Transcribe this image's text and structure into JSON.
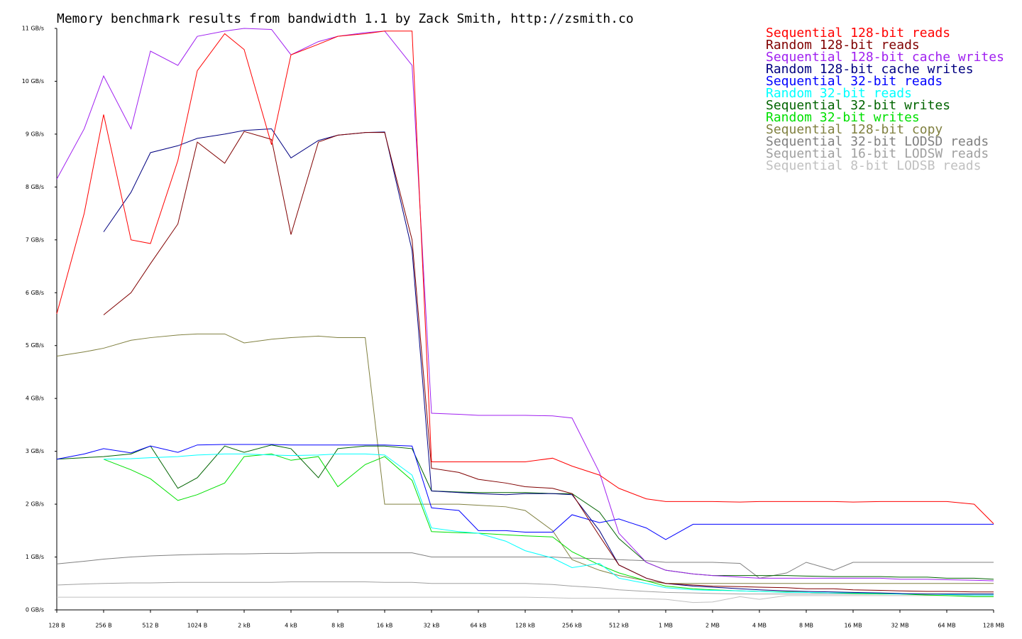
{
  "chart_data": {
    "type": "line",
    "title": "Memory benchmark results from bandwidth 1.1 by Zack Smith, http://zsmith.co",
    "xscale": "log",
    "legend": "top-right",
    "grid": false,
    "x": [
      128,
      192,
      256,
      384,
      512,
      768,
      1024,
      1536,
      2048,
      3072,
      4096,
      6144,
      8192,
      12288,
      16384,
      24576,
      32768,
      49152,
      65536,
      98304,
      131072,
      196608,
      262144,
      393216,
      524288,
      786432,
      1048576,
      1572864,
      2097152,
      3145728,
      4194304,
      6291456,
      8388608,
      12582912,
      16777216,
      25165824,
      33554432,
      50331648,
      67108864,
      100663296,
      134217728
    ],
    "xlim": [
      128,
      134217728
    ],
    "xticks": [
      {
        "value": 128,
        "label": "128 B"
      },
      {
        "value": 256,
        "label": "256 B"
      },
      {
        "value": 512,
        "label": "512 B"
      },
      {
        "value": 1024,
        "label": "1024 B"
      },
      {
        "value": 2048,
        "label": "2 kB"
      },
      {
        "value": 4096,
        "label": "4 kB"
      },
      {
        "value": 8192,
        "label": "8 kB"
      },
      {
        "value": 16384,
        "label": "16 kB"
      },
      {
        "value": 32768,
        "label": "32 kB"
      },
      {
        "value": 65536,
        "label": "64 kB"
      },
      {
        "value": 131072,
        "label": "128 kB"
      },
      {
        "value": 262144,
        "label": "256 kB"
      },
      {
        "value": 524288,
        "label": "512 kB"
      },
      {
        "value": 1048576,
        "label": "1 MB"
      },
      {
        "value": 2097152,
        "label": "2 MB"
      },
      {
        "value": 4194304,
        "label": "4 MB"
      },
      {
        "value": 8388608,
        "label": "8 MB"
      },
      {
        "value": 16777216,
        "label": "16 MB"
      },
      {
        "value": 33554432,
        "label": "32 MB"
      },
      {
        "value": 67108864,
        "label": "64 MB"
      },
      {
        "value": 134217728,
        "label": "128 MB"
      }
    ],
    "ylim": [
      0,
      11
    ],
    "yticks": [
      {
        "value": 0,
        "label": "0 GB/s"
      },
      {
        "value": 1,
        "label": "1 GB/s"
      },
      {
        "value": 2,
        "label": "2 GB/s"
      },
      {
        "value": 3,
        "label": "3 GB/s"
      },
      {
        "value": 4,
        "label": "4 GB/s"
      },
      {
        "value": 5,
        "label": "5 GB/s"
      },
      {
        "value": 6,
        "label": "6 GB/s"
      },
      {
        "value": 7,
        "label": "7 GB/s"
      },
      {
        "value": 8,
        "label": "8 GB/s"
      },
      {
        "value": 9,
        "label": "9 GB/s"
      },
      {
        "value": 10,
        "label": "10 GB/s"
      },
      {
        "value": 11,
        "label": "11 GB/s"
      }
    ],
    "series": [
      {
        "name": "Sequential 128-bit reads",
        "color": "#ff0000",
        "values": [
          5.6,
          7.5,
          9.37,
          7.0,
          6.93,
          8.5,
          10.2,
          10.9,
          10.6,
          8.8,
          10.5,
          10.7,
          10.85,
          10.9,
          10.95,
          10.95,
          2.8,
          2.8,
          2.8,
          2.8,
          2.8,
          2.87,
          2.72,
          2.55,
          2.3,
          2.1,
          2.05,
          2.05,
          2.05,
          2.04,
          2.05,
          2.05,
          2.05,
          2.05,
          2.04,
          2.05,
          2.05,
          2.05,
          2.05,
          2.0,
          1.63
        ]
      },
      {
        "name": "Random 128-bit reads",
        "color": "#800000",
        "values": [
          null,
          null,
          5.58,
          6.0,
          6.55,
          7.3,
          8.85,
          8.45,
          9.05,
          8.9,
          7.1,
          8.85,
          8.98,
          9.03,
          9.03,
          7.0,
          2.68,
          2.6,
          2.47,
          2.4,
          2.33,
          2.3,
          2.2,
          1.4,
          0.85,
          0.6,
          0.5,
          0.47,
          0.45,
          0.44,
          0.43,
          0.42,
          0.4,
          0.4,
          0.38,
          0.37,
          0.36,
          0.35,
          0.35,
          0.34,
          0.34
        ]
      },
      {
        "name": "Sequential 128-bit cache writes",
        "color": "#a020f0",
        "values": [
          8.15,
          9.1,
          10.1,
          9.1,
          10.57,
          10.3,
          10.85,
          10.95,
          11.0,
          10.98,
          10.5,
          10.75,
          10.85,
          10.92,
          10.95,
          10.3,
          3.72,
          3.7,
          3.68,
          3.68,
          3.68,
          3.67,
          3.63,
          2.6,
          1.45,
          0.9,
          0.75,
          0.68,
          0.65,
          0.62,
          0.6,
          0.6,
          0.6,
          0.6,
          0.6,
          0.6,
          0.58,
          0.58,
          0.57,
          0.56,
          0.55
        ]
      },
      {
        "name": "Random 128-bit cache writes",
        "color": "#000080",
        "values": [
          null,
          null,
          7.15,
          7.9,
          8.65,
          8.78,
          8.92,
          9.0,
          9.07,
          9.1,
          8.55,
          8.88,
          8.98,
          9.03,
          9.04,
          6.8,
          2.25,
          2.22,
          2.2,
          2.18,
          2.2,
          2.2,
          2.18,
          1.5,
          0.85,
          0.6,
          0.5,
          0.45,
          0.43,
          0.4,
          0.38,
          0.36,
          0.35,
          0.34,
          0.33,
          0.32,
          0.31,
          0.3,
          0.3,
          0.3,
          0.3
        ]
      },
      {
        "name": "Sequential 32-bit reads",
        "color": "#0000ff",
        "values": [
          2.85,
          2.95,
          3.05,
          2.97,
          3.1,
          2.98,
          3.12,
          3.13,
          3.13,
          3.13,
          3.12,
          3.12,
          3.12,
          3.12,
          3.12,
          3.1,
          1.93,
          1.88,
          1.5,
          1.5,
          1.47,
          1.47,
          1.8,
          1.65,
          1.72,
          1.55,
          1.33,
          1.62,
          1.62,
          1.62,
          1.62,
          1.62,
          1.62,
          1.62,
          1.62,
          1.62,
          1.62,
          1.62,
          1.62,
          1.62,
          1.62
        ]
      },
      {
        "name": "Random 32-bit reads",
        "color": "#00ffff",
        "values": [
          null,
          null,
          2.85,
          2.86,
          2.88,
          2.9,
          2.93,
          2.95,
          2.95,
          2.93,
          2.92,
          2.93,
          2.95,
          2.95,
          2.93,
          2.55,
          1.55,
          1.48,
          1.45,
          1.3,
          1.12,
          0.98,
          0.8,
          0.88,
          0.6,
          0.5,
          0.42,
          0.38,
          0.37,
          0.36,
          0.35,
          0.33,
          0.33,
          0.32,
          0.32,
          0.31,
          0.3,
          0.3,
          0.29,
          0.28,
          0.28
        ]
      },
      {
        "name": "Sequential 32-bit writes",
        "color": "#006400",
        "values": [
          2.85,
          2.88,
          2.9,
          2.95,
          3.1,
          2.3,
          2.5,
          3.1,
          2.98,
          3.12,
          3.05,
          2.5,
          3.05,
          3.1,
          3.1,
          3.05,
          2.25,
          2.23,
          2.22,
          2.22,
          2.22,
          2.2,
          2.2,
          1.85,
          1.35,
          0.9,
          0.75,
          0.68,
          0.65,
          0.65,
          0.65,
          0.65,
          0.64,
          0.63,
          0.63,
          0.63,
          0.62,
          0.62,
          0.6,
          0.6,
          0.58
        ]
      },
      {
        "name": "Random 32-bit writes",
        "color": "#00e000",
        "values": [
          null,
          null,
          2.85,
          2.65,
          2.48,
          2.07,
          2.18,
          2.4,
          2.9,
          2.95,
          2.83,
          2.9,
          2.33,
          2.75,
          2.9,
          2.45,
          1.48,
          1.46,
          1.45,
          1.42,
          1.4,
          1.38,
          1.1,
          0.85,
          0.7,
          0.55,
          0.45,
          0.4,
          0.38,
          0.36,
          0.35,
          0.34,
          0.33,
          0.32,
          0.31,
          0.3,
          0.3,
          0.28,
          0.27,
          0.25,
          0.25
        ]
      },
      {
        "name": "Sequential 128-bit copy",
        "color": "#808040",
        "values": [
          4.8,
          4.88,
          4.95,
          5.1,
          5.15,
          5.2,
          5.22,
          5.22,
          5.05,
          5.12,
          5.15,
          5.18,
          5.15,
          5.15,
          2.0,
          2.0,
          2.0,
          2.0,
          1.98,
          1.95,
          1.88,
          1.5,
          0.95,
          0.75,
          0.65,
          0.55,
          0.5,
          0.5,
          0.5,
          0.5,
          0.5,
          0.5,
          0.5,
          0.5,
          0.5,
          0.5,
          0.5,
          0.5,
          0.5,
          0.5,
          0.5
        ]
      },
      {
        "name": "Sequential 32-bit LODSD reads",
        "color": "#808080",
        "values": [
          0.87,
          0.92,
          0.96,
          1.0,
          1.02,
          1.04,
          1.05,
          1.06,
          1.06,
          1.07,
          1.07,
          1.08,
          1.08,
          1.08,
          1.08,
          1.08,
          1.0,
          1.0,
          1.0,
          1.0,
          1.0,
          1.0,
          0.98,
          0.97,
          0.95,
          0.93,
          0.9,
          0.9,
          0.9,
          0.88,
          0.6,
          0.7,
          0.9,
          0.75,
          0.9,
          0.9,
          0.9,
          0.9,
          0.9,
          0.9,
          0.9
        ]
      },
      {
        "name": "Sequential 16-bit LODSW reads",
        "color": "#a0a0a0",
        "values": [
          0.47,
          0.49,
          0.5,
          0.51,
          0.51,
          0.52,
          0.52,
          0.52,
          0.52,
          0.52,
          0.53,
          0.53,
          0.53,
          0.53,
          0.52,
          0.52,
          0.5,
          0.5,
          0.5,
          0.5,
          0.5,
          0.48,
          0.45,
          0.42,
          0.38,
          0.35,
          0.33,
          0.32,
          0.31,
          0.3,
          0.3,
          0.3,
          0.3,
          0.3,
          0.3,
          0.3,
          0.3,
          0.3,
          0.3,
          0.3,
          0.3
        ]
      },
      {
        "name": "Sequential 8-bit LODSB reads",
        "color": "#c0c0c0",
        "values": [
          0.24,
          0.24,
          0.24,
          0.24,
          0.24,
          0.24,
          0.24,
          0.24,
          0.24,
          0.24,
          0.24,
          0.24,
          0.24,
          0.24,
          0.24,
          0.24,
          0.24,
          0.24,
          0.24,
          0.24,
          0.24,
          0.23,
          0.22,
          0.22,
          0.22,
          0.21,
          0.2,
          0.14,
          0.15,
          0.25,
          0.2,
          0.27,
          0.27,
          0.27,
          0.27,
          0.27,
          0.27,
          0.27,
          0.27,
          0.27,
          0.27
        ]
      }
    ]
  }
}
